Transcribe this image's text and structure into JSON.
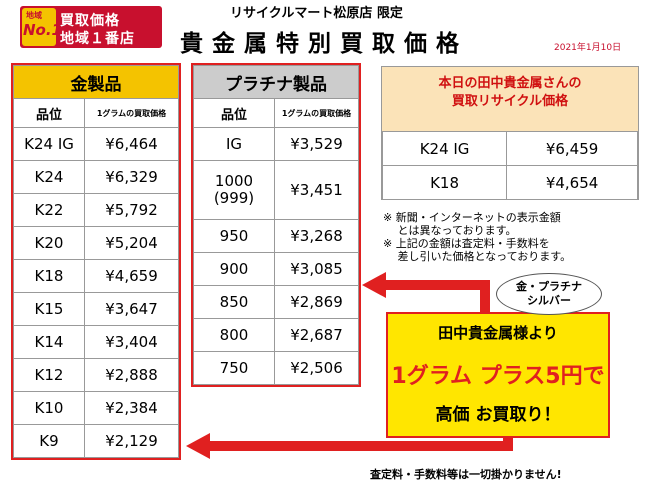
{
  "badge": {
    "local": "地域",
    "no1": "No.1",
    "line1": "買取価格",
    "line2": "地域１番店"
  },
  "store": "リサイクルマート松原店 限定",
  "title": "貴金属特別買取価格",
  "date": "2021年1月10日",
  "gold": {
    "header": "金製品",
    "col1": "品位",
    "col2": "1グラムの買取価格",
    "rows": [
      {
        "grade": "K24 IG",
        "price": "¥6,464"
      },
      {
        "grade": "K24",
        "price": "¥6,329"
      },
      {
        "grade": "K22",
        "price": "¥5,792"
      },
      {
        "grade": "K20",
        "price": "¥5,204"
      },
      {
        "grade": "K18",
        "price": "¥4,659"
      },
      {
        "grade": "K15",
        "price": "¥3,647"
      },
      {
        "grade": "K14",
        "price": "¥3,404"
      },
      {
        "grade": "K12",
        "price": "¥2,888"
      },
      {
        "grade": "K10",
        "price": "¥2,384"
      },
      {
        "grade": "K9",
        "price": "¥2,129"
      }
    ]
  },
  "platinum": {
    "header": "プラチナ製品",
    "col1": "品位",
    "col2": "1グラムの買取価格",
    "rows": [
      {
        "grade": "IG",
        "price": "¥3,529"
      },
      {
        "grade": "1000\n(999)",
        "price": "¥3,451"
      },
      {
        "grade": "950",
        "price": "¥3,268"
      },
      {
        "grade": "900",
        "price": "¥3,085"
      },
      {
        "grade": "850",
        "price": "¥2,869"
      },
      {
        "grade": "800",
        "price": "¥2,687"
      },
      {
        "grade": "750",
        "price": "¥2,506"
      }
    ]
  },
  "tanaka": {
    "header1": "本日の田中貴金属さんの",
    "header2": "買取リサイクル価格",
    "rows": [
      {
        "grade": "K24 IG",
        "price": "¥6,459"
      },
      {
        "grade": "K18",
        "price": "¥4,654"
      }
    ]
  },
  "notes": [
    "※ 新聞・インターネットの表示金額",
    "　 とは異なっております。",
    "※ 上記の金額は査定料・手数料を",
    "　 差し引いた価格となっております。"
  ],
  "bubble": {
    "line1": "金・プラチナ",
    "line2": "シルバー"
  },
  "promo": {
    "line1": "田中貴金属様より",
    "line2": "1グラム プラス5円で",
    "line3": "高価 お買取り！"
  },
  "footer": "査定料・手数料等は一切掛かりません!",
  "colors": {
    "red": "#e02020",
    "gold": "#f4c300",
    "yellow": "#ffe600",
    "gray": "#cccccc"
  }
}
